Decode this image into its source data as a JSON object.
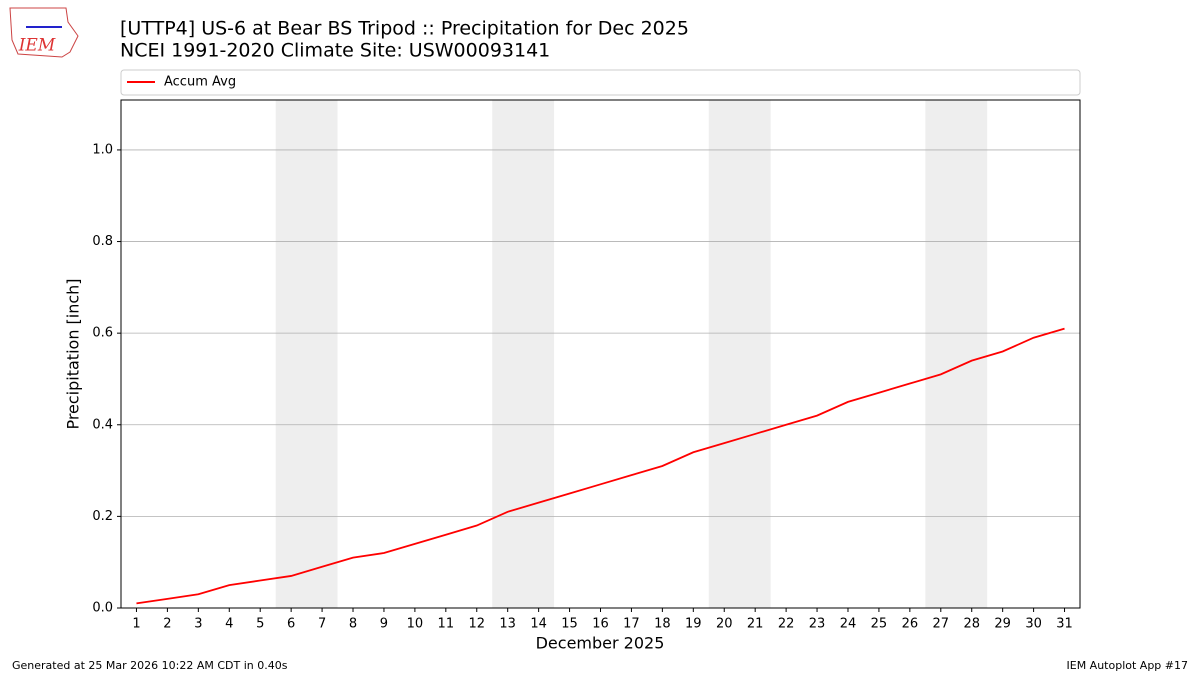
{
  "chart_data": {
    "type": "line",
    "title": "[UTTP4] US-6 at Bear BS Tripod  :: Precipitation for Dec 2025",
    "subtitle": "NCEI 1991-2020 Climate Site: USW00093141",
    "xlabel": "December 2025",
    "ylabel": "Precipitation [inch]",
    "x": [
      1,
      2,
      3,
      4,
      5,
      6,
      7,
      8,
      9,
      10,
      11,
      12,
      13,
      14,
      15,
      16,
      17,
      18,
      19,
      20,
      21,
      22,
      23,
      24,
      25,
      26,
      27,
      28,
      29,
      30,
      31
    ],
    "series": [
      {
        "name": "Accum Avg",
        "color": "#ff0000",
        "values": [
          0.01,
          0.02,
          0.03,
          0.05,
          0.06,
          0.07,
          0.09,
          0.11,
          0.12,
          0.14,
          0.16,
          0.18,
          0.21,
          0.23,
          0.25,
          0.27,
          0.29,
          0.31,
          0.34,
          0.36,
          0.38,
          0.4,
          0.42,
          0.45,
          0.47,
          0.49,
          0.51,
          0.54,
          0.56,
          0.59,
          0.61
        ]
      }
    ],
    "xlim": [
      0.5,
      31.5
    ],
    "ylim": [
      0,
      1.109
    ],
    "xticks": [
      1,
      2,
      3,
      4,
      5,
      6,
      7,
      8,
      9,
      10,
      11,
      12,
      13,
      14,
      15,
      16,
      17,
      18,
      19,
      20,
      21,
      22,
      23,
      24,
      25,
      26,
      27,
      28,
      29,
      30,
      31
    ],
    "yticks": [
      {
        "value": 0,
        "label": "0.0"
      },
      0.2,
      0.4,
      0.6,
      0.8,
      {
        "value": 1,
        "label": "1.0"
      }
    ],
    "shaded_days": [
      [
        6,
        7
      ],
      [
        13,
        14
      ],
      [
        20,
        21
      ],
      [
        27,
        28
      ]
    ],
    "shade_color": "#eeeeee",
    "grid": true,
    "legend": "top"
  },
  "logo": "IEM",
  "footer_left": "Generated at 25 Mar 2026 10:22 AM CDT in 0.40s",
  "footer_right": "IEM Autoplot App #17"
}
